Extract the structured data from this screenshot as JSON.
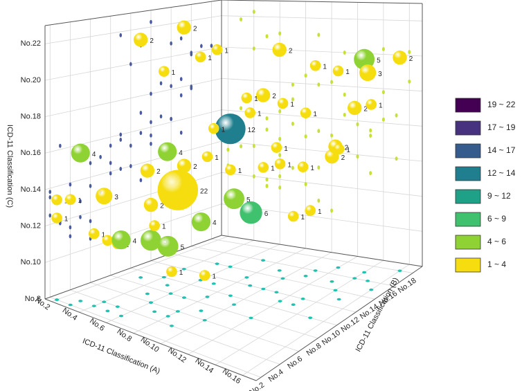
{
  "chart_data": {
    "type": "bubble3d",
    "x_label": "ICD-11 Classification (A)",
    "y_label": "ICD-11 Classification (B)",
    "z_label": "ICD-11 Classification (C)",
    "xlim": [
      1.5,
      17
    ],
    "ylim": [
      1.5,
      19
    ],
    "zlim": [
      8,
      23
    ],
    "xticks": [
      {
        "value": 2,
        "label": "No.2"
      },
      {
        "value": 4,
        "label": "No.4"
      },
      {
        "value": 6,
        "label": "No.6"
      },
      {
        "value": 8,
        "label": "No.8"
      },
      {
        "value": 10,
        "label": "No.10"
      },
      {
        "value": 12,
        "label": "No.12"
      },
      {
        "value": 14,
        "label": "No.14"
      },
      {
        "value": 16,
        "label": "No.16"
      }
    ],
    "yticks": [
      {
        "value": 2,
        "label": "No.2"
      },
      {
        "value": 4,
        "label": "No.4"
      },
      {
        "value": 6,
        "label": "No.6"
      },
      {
        "value": 8,
        "label": "No.8"
      },
      {
        "value": 10,
        "label": "No.10"
      },
      {
        "value": 12,
        "label": "No.12"
      },
      {
        "value": 14,
        "label": "No.14"
      },
      {
        "value": 16,
        "label": "No.16"
      },
      {
        "value": 18,
        "label": "No.18"
      }
    ],
    "zticks": [
      {
        "value": 8,
        "label": "No.8"
      },
      {
        "value": 10,
        "label": "No.10"
      },
      {
        "value": 12,
        "label": "No.12"
      },
      {
        "value": 14,
        "label": "No.14"
      },
      {
        "value": 16,
        "label": "No.16"
      },
      {
        "value": 18,
        "label": "No.18"
      },
      {
        "value": 20,
        "label": "No.20"
      },
      {
        "value": 22,
        "label": "No.22"
      }
    ],
    "x": [
      8,
      6,
      12,
      10,
      14,
      3,
      6,
      9,
      6,
      8,
      5,
      4,
      15,
      16,
      7,
      2,
      2,
      3,
      4,
      5,
      5,
      6,
      7,
      7,
      8,
      9,
      10,
      11,
      12,
      13,
      14,
      13,
      15,
      14,
      16,
      10,
      11,
      4,
      6,
      3,
      4,
      5,
      9,
      11,
      12,
      13,
      15,
      9,
      10,
      7,
      8,
      5,
      6,
      9
    ],
    "y": [
      6,
      14,
      8,
      9,
      17,
      3,
      3,
      7,
      6,
      5,
      9,
      4,
      16,
      18,
      16,
      2,
      2,
      2,
      3,
      4,
      3,
      6,
      5,
      8,
      9,
      10,
      12,
      12,
      11,
      12,
      14,
      15,
      13,
      16,
      15,
      14,
      15,
      10,
      11,
      9,
      12,
      14,
      15,
      16,
      17,
      11,
      10,
      4,
      6,
      11,
      13,
      7,
      8,
      12
    ],
    "z": [
      14.8,
      16.2,
      13.9,
      14,
      20.3,
      16.2,
      12.2,
      13,
      11.5,
      11.9,
      15.7,
      13.9,
      19.9,
      20.2,
      17.9,
      13.5,
      12.5,
      13.8,
      12,
      11.5,
      11.9,
      13.5,
      12.8,
      15.5,
      16,
      15.2,
      15,
      16.3,
      15.8,
      15.5,
      16.2,
      15.2,
      16.5,
      17.8,
      18.5,
      18.2,
      17.5,
      20,
      21,
      21.8,
      22.3,
      20.8,
      21,
      20,
      19.5,
      13,
      14,
      11,
      10.5,
      17,
      18.5,
      15,
      14.5,
      18
    ],
    "sizes": [
      22,
      12,
      6,
      5,
      5,
      4,
      4,
      4,
      5,
      5,
      4,
      3,
      3,
      2,
      2,
      1,
      1,
      1,
      1,
      1,
      1,
      2,
      1,
      2,
      1,
      1,
      1,
      1,
      1,
      1,
      2,
      2,
      1,
      2,
      1,
      1,
      1,
      1,
      1,
      2,
      2,
      1,
      2,
      1,
      1,
      1,
      1,
      1,
      1,
      1,
      1,
      2,
      2,
      1
    ],
    "legend": [
      {
        "label": "19 ~ 22",
        "min": 19,
        "max": 22,
        "color": "#440154"
      },
      {
        "label": "17 ~ 19",
        "min": 17,
        "max": 19,
        "color": "#46327e"
      },
      {
        "label": "14 ~ 17",
        "min": 14,
        "max": 17,
        "color": "#365c8d"
      },
      {
        "label": "12 ~ 14",
        "min": 12,
        "max": 14,
        "color": "#1f7f8e"
      },
      {
        "label": "9 ~ 12",
        "min": 9,
        "max": 12,
        "color": "#1fa187"
      },
      {
        "label": "6 ~ 9",
        "min": 6,
        "max": 9,
        "color": "#3fc16d"
      },
      {
        "label": "4 ~ 6",
        "min": 4,
        "max": 6,
        "color": "#8fd233"
      },
      {
        "label": "1 ~ 4",
        "min": 1,
        "max": 4,
        "color": "#f5dd10"
      }
    ],
    "legend_position": "right",
    "grid": true
  }
}
